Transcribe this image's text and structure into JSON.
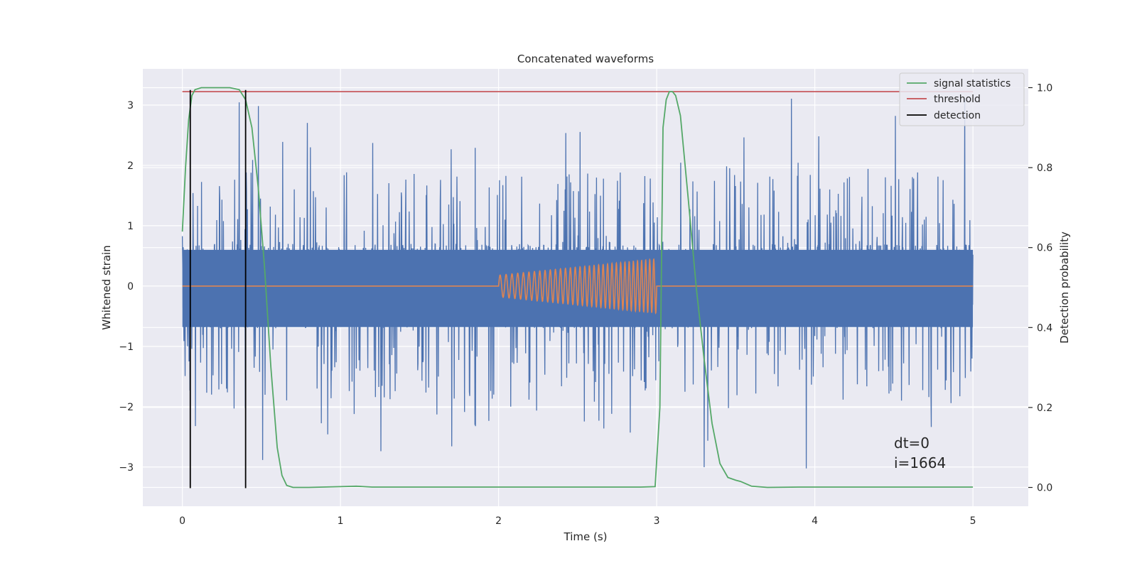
{
  "chart_data": {
    "type": "line",
    "title": "Concatenated waveforms",
    "xlabel": "Time (s)",
    "ylabel": "Whitened strain",
    "y2label": "Detection probability",
    "xlim": [
      -0.25,
      5.35
    ],
    "ylim": [
      -3.65,
      3.6
    ],
    "y2lim": [
      -0.047,
      1.047
    ],
    "xticks": [
      0,
      1,
      2,
      3,
      4,
      5
    ],
    "xtick_labels": [
      "0",
      "1",
      "2",
      "3",
      "4",
      "5"
    ],
    "yticks": [
      3,
      2,
      1,
      0,
      -1,
      -2,
      -3
    ],
    "ytick_labels": [
      "3",
      "2",
      "1",
      "0",
      "−1",
      "−2",
      "−3"
    ],
    "y2ticks": [
      1.0,
      0.8,
      0.6,
      0.4,
      0.2,
      0.0
    ],
    "y2tick_labels": [
      "1.0",
      "0.8",
      "0.6",
      "0.4",
      "0.2",
      "0.0"
    ],
    "grid": true,
    "legend_position": "top-right",
    "colors": {
      "noise": "#4c72b0",
      "injection": "#dd8452",
      "signal_statistics": "#55a868",
      "threshold": "#c44e52",
      "detection": "#000000",
      "axes_bg": "#eaeaf2",
      "grid": "#ffffff"
    },
    "noise": {
      "x_range": [
        0,
        5
      ],
      "dense_band": [
        -0.68,
        0.6
      ],
      "spike_envelope": [
        -3.3,
        3.3
      ]
    },
    "injection": {
      "start": 2.0,
      "end": 3.0,
      "amplitude_start": 0.18,
      "amplitude_end": 0.45,
      "freq_start": 26,
      "freq_end": 40
    },
    "series": [
      {
        "name": "signal statistics",
        "axis": "right",
        "x": [
          0,
          0.02,
          0.04,
          0.06,
          0.08,
          0.12,
          0.2,
          0.3,
          0.36,
          0.4,
          0.44,
          0.48,
          0.52,
          0.56,
          0.6,
          0.63,
          0.66,
          0.7,
          0.8,
          1.0,
          1.1,
          1.2,
          1.5,
          2.0,
          2.5,
          2.9,
          2.99,
          3.02,
          3.04,
          3.06,
          3.08,
          3.1,
          3.12,
          3.15,
          3.2,
          3.25,
          3.3,
          3.35,
          3.4,
          3.45,
          3.5,
          3.53,
          3.56,
          3.6,
          3.7,
          3.9,
          4.0,
          4.5,
          5.0
        ],
        "y": [
          0.64,
          0.8,
          0.92,
          0.98,
          0.995,
          1.0,
          1.0,
          1.0,
          0.995,
          0.97,
          0.9,
          0.75,
          0.55,
          0.3,
          0.1,
          0.03,
          0.005,
          0.0,
          0.0,
          0.002,
          0.003,
          0.001,
          0.001,
          0.001,
          0.001,
          0.001,
          0.002,
          0.2,
          0.9,
          0.97,
          0.99,
          0.99,
          0.98,
          0.93,
          0.72,
          0.5,
          0.32,
          0.16,
          0.06,
          0.025,
          0.018,
          0.015,
          0.01,
          0.003,
          0.0,
          0.001,
          0.001,
          0.001,
          0.001
        ]
      },
      {
        "name": "threshold",
        "axis": "right",
        "x": [
          0,
          5
        ],
        "y": [
          0.99,
          0.99
        ]
      },
      {
        "name": "detection",
        "axis": "left",
        "x": [
          0.05,
          0.4
        ],
        "y_span": [
          -3.35,
          3.25
        ]
      }
    ],
    "annotations": [
      "dt=0",
      "i=1664"
    ]
  }
}
